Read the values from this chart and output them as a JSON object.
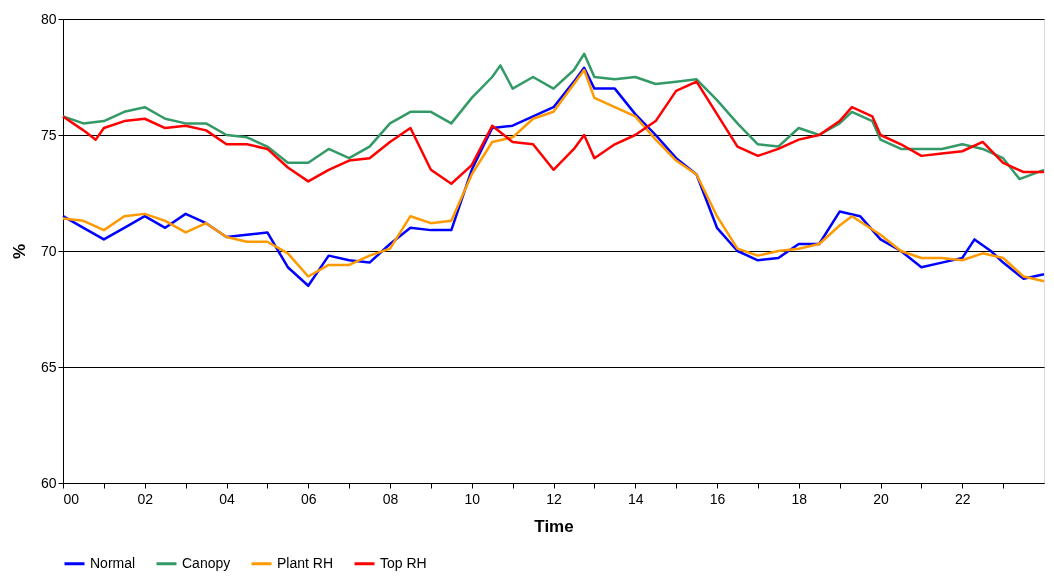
{
  "chart_data": {
    "type": "line",
    "xlabel": "Time",
    "ylabel": "%",
    "xlim": [
      0,
      24
    ],
    "ylim": [
      60,
      80
    ],
    "xticks": [
      {
        "value": 0,
        "label": "00"
      },
      {
        "value": 1,
        "label": null
      },
      {
        "value": 2,
        "label": "02"
      },
      {
        "value": 3,
        "label": null
      },
      {
        "value": 4,
        "label": "04"
      },
      {
        "value": 5,
        "label": null
      },
      {
        "value": 6,
        "label": "06"
      },
      {
        "value": 7,
        "label": null
      },
      {
        "value": 8,
        "label": "08"
      },
      {
        "value": 9,
        "label": null
      },
      {
        "value": 10,
        "label": "10"
      },
      {
        "value": 11,
        "label": null
      },
      {
        "value": 12,
        "label": "12"
      },
      {
        "value": 13,
        "label": null
      },
      {
        "value": 14,
        "label": "14"
      },
      {
        "value": 15,
        "label": null
      },
      {
        "value": 16,
        "label": "16"
      },
      {
        "value": 17,
        "label": null
      },
      {
        "value": 18,
        "label": "18"
      },
      {
        "value": 19,
        "label": null
      },
      {
        "value": 20,
        "label": "20"
      },
      {
        "value": 21,
        "label": null
      },
      {
        "value": 22,
        "label": "22"
      },
      {
        "value": 23,
        "label": null
      }
    ],
    "yticks": [
      60,
      65,
      70,
      75,
      80
    ],
    "grid": "y",
    "legend": "bottom",
    "marker": "none",
    "line_style": "solid",
    "series": [
      {
        "name": "Normal",
        "color": "#0000ff",
        "x": [
          0,
          0.5,
          1,
          1.5,
          2,
          2.5,
          3,
          3.5,
          4,
          4.5,
          5,
          5.5,
          6,
          6.5,
          7,
          7.5,
          8,
          8.5,
          9,
          9.5,
          10,
          10.5,
          11,
          11.5,
          12,
          12.5,
          12.75,
          13,
          13.5,
          14,
          14.5,
          15,
          15.5,
          16,
          16.5,
          17,
          17.5,
          18,
          18.5,
          19,
          19.5,
          20,
          20.5,
          21,
          21.5,
          22,
          22.3,
          22.7,
          23,
          23.5,
          24
        ],
        "values": [
          71.5,
          71.0,
          70.5,
          71.0,
          71.5,
          71.0,
          71.6,
          71.2,
          70.6,
          70.7,
          70.8,
          69.3,
          68.5,
          69.8,
          69.6,
          69.5,
          70.3,
          71.0,
          70.9,
          70.9,
          73.5,
          75.3,
          75.4,
          75.8,
          76.2,
          77.3,
          77.9,
          77.0,
          77.0,
          75.9,
          75.0,
          74.0,
          73.3,
          71.0,
          70.0,
          69.6,
          69.7,
          70.3,
          70.3,
          71.7,
          71.5,
          70.5,
          70.0,
          69.3,
          69.5,
          69.7,
          70.5,
          70.0,
          69.5,
          68.8,
          69.0
        ]
      },
      {
        "name": "Canopy",
        "color": "#339966",
        "x": [
          0,
          0.5,
          1,
          1.5,
          2,
          2.5,
          3,
          3.5,
          4,
          4.5,
          5,
          5.5,
          6,
          6.5,
          7,
          7.5,
          8,
          8.5,
          9,
          9.5,
          10,
          10.5,
          10.7,
          11,
          11.5,
          12,
          12.5,
          12.75,
          13,
          13.5,
          14,
          14.5,
          15,
          15.5,
          16,
          16.5,
          17,
          17.5,
          18,
          18.5,
          19,
          19.3,
          19.8,
          20,
          20.5,
          21,
          21.5,
          22,
          22.5,
          23,
          23.4,
          24
        ],
        "values": [
          75.8,
          75.5,
          75.6,
          76.0,
          76.2,
          75.7,
          75.5,
          75.5,
          75.0,
          74.9,
          74.5,
          73.8,
          73.8,
          74.4,
          74.0,
          74.5,
          75.5,
          76.0,
          76.0,
          75.5,
          76.6,
          77.5,
          78.0,
          77.0,
          77.5,
          77.0,
          77.8,
          78.5,
          77.5,
          77.4,
          77.5,
          77.2,
          77.3,
          77.4,
          76.5,
          75.5,
          74.6,
          74.5,
          75.3,
          75.0,
          75.5,
          76.0,
          75.6,
          74.8,
          74.4,
          74.4,
          74.4,
          74.6,
          74.4,
          74.0,
          73.1,
          73.5
        ]
      },
      {
        "name": "Plant RH",
        "color": "#ff9900",
        "x": [
          0,
          0.5,
          1,
          1.5,
          2,
          2.5,
          3,
          3.5,
          4,
          4.5,
          5,
          5.5,
          6,
          6.5,
          7,
          7.5,
          8,
          8.5,
          9,
          9.5,
          10,
          10.5,
          11,
          11.5,
          12,
          12.5,
          12.75,
          13,
          13.5,
          14,
          14.5,
          15,
          15.5,
          16,
          16.5,
          17,
          17.5,
          18,
          18.5,
          19,
          19.3,
          20,
          20.5,
          21,
          21.5,
          22,
          22.5,
          23,
          23.5,
          24
        ],
        "values": [
          71.4,
          71.3,
          70.9,
          71.5,
          71.6,
          71.3,
          70.8,
          71.2,
          70.6,
          70.4,
          70.4,
          69.9,
          68.9,
          69.4,
          69.4,
          69.8,
          70.1,
          71.5,
          71.2,
          71.3,
          73.3,
          74.7,
          74.9,
          75.7,
          76.0,
          77.2,
          77.8,
          76.6,
          76.2,
          75.8,
          74.8,
          73.9,
          73.3,
          71.5,
          70.1,
          69.8,
          70.0,
          70.1,
          70.3,
          71.1,
          71.5,
          70.7,
          70.0,
          69.7,
          69.7,
          69.6,
          69.9,
          69.7,
          68.9,
          68.7
        ]
      },
      {
        "name": "Top RH",
        "color": "#ff0000",
        "x": [
          0,
          0.5,
          0.8,
          1,
          1.5,
          2,
          2.5,
          3,
          3.5,
          4,
          4.5,
          5,
          5.5,
          6,
          6.5,
          7,
          7.5,
          8,
          8.5,
          9,
          9.5,
          10,
          10.5,
          11,
          11.5,
          12,
          12.5,
          12.75,
          13,
          13.5,
          14,
          14.5,
          15,
          15.5,
          16,
          16.5,
          17,
          17.5,
          18,
          18.5,
          19,
          19.3,
          19.8,
          20,
          20.5,
          21,
          21.5,
          22,
          22.5,
          23,
          23.5,
          24
        ],
        "values": [
          75.8,
          75.2,
          74.8,
          75.3,
          75.6,
          75.7,
          75.3,
          75.4,
          75.2,
          74.6,
          74.6,
          74.4,
          73.6,
          73.0,
          73.5,
          73.9,
          74.0,
          74.7,
          75.3,
          73.5,
          72.9,
          73.7,
          75.4,
          74.7,
          74.6,
          73.5,
          74.4,
          75.0,
          74.0,
          74.6,
          75.0,
          75.6,
          76.9,
          77.3,
          75.9,
          74.5,
          74.1,
          74.4,
          74.8,
          75.0,
          75.6,
          76.2,
          75.8,
          75.0,
          74.6,
          74.1,
          74.2,
          74.3,
          74.7,
          73.8,
          73.4,
          73.4
        ]
      }
    ]
  }
}
